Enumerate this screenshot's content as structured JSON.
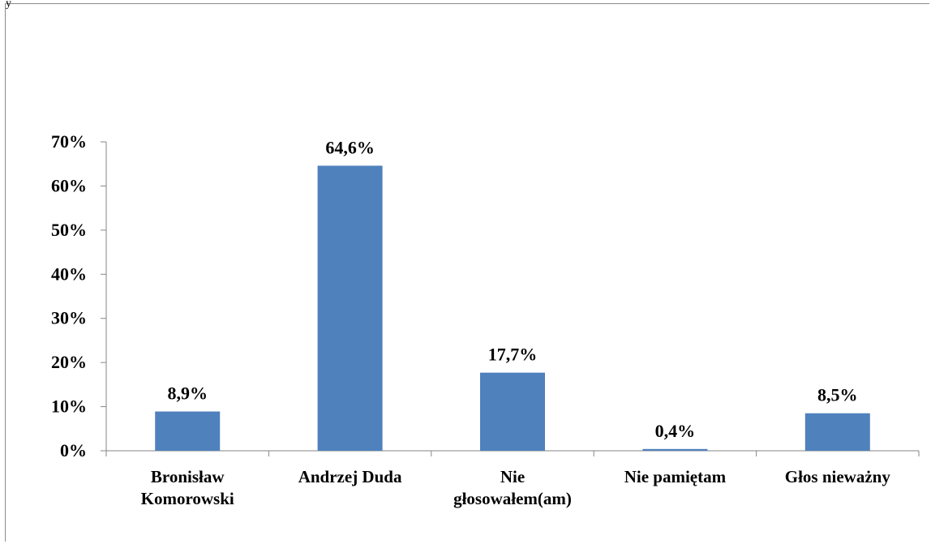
{
  "chart_data": {
    "type": "bar",
    "categories": [
      [
        "Bronisław",
        "Komorowski"
      ],
      [
        "Andrzej Duda"
      ],
      [
        "Nie",
        "głosowałem(am)"
      ],
      [
        "Nie pamiętam"
      ],
      [
        "Głos nieważny"
      ]
    ],
    "values": [
      8.9,
      64.6,
      17.7,
      0.4,
      8.5
    ],
    "data_labels": [
      "8,9%",
      "64,6%",
      "17,7%",
      "0,4%",
      "8,5%"
    ],
    "y_ticks": [
      {
        "value": 0,
        "label": "0%"
      },
      {
        "value": 10,
        "label": "10%"
      },
      {
        "value": 20,
        "label": "20%"
      },
      {
        "value": 30,
        "label": "30%"
      },
      {
        "value": 40,
        "label": "40%"
      },
      {
        "value": 50,
        "label": "50%"
      },
      {
        "value": 60,
        "label": "60%"
      },
      {
        "value": 70,
        "label": "70%"
      }
    ],
    "ylim": [
      0,
      70
    ],
    "grid": false,
    "legend": "none",
    "bar_color": "#4f81bd",
    "title": "",
    "xlabel": "",
    "ylabel": ""
  }
}
